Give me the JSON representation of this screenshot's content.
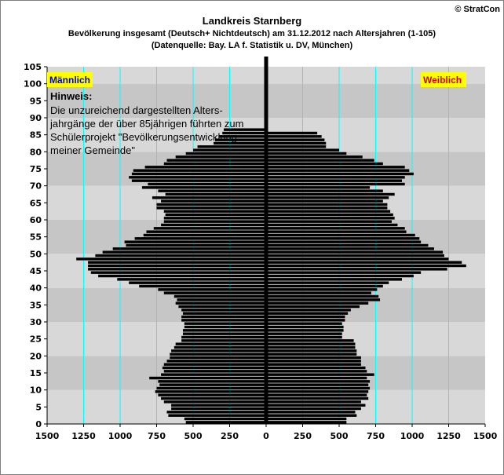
{
  "header": {
    "title": "Landkreis Starnberg",
    "subtitle": "Bevölkerung  insgesamt (Deutsch+ Nichtdeutsch) am 31.12.2012 nach Altersjahren (1-105)",
    "source": "(Datenquelle: Bay. LA f. Statistik u. DV, München)",
    "copyright": "© StratCon"
  },
  "labels": {
    "male": "Männlich",
    "female": "Weiblich"
  },
  "note": {
    "heading": "Hinweis:",
    "lines": [
      "Die unzureichend dargestellten Alters-",
      "jahrgänge der über 85jährigen führten zum",
      "Schülerprojekt \"Bevölkerungsentwicklung",
      "meiner Gemeinde\""
    ]
  },
  "colors": {
    "bars": "#000000",
    "gridlines": "#00ffff",
    "tag_background": "#ffff00",
    "male_tag_text": "#0000cc",
    "female_tag_text": "#cc0000",
    "bands": [
      "#d8d8d8",
      "#c6c6c6",
      "#d8d8d8",
      "#c6c6c6",
      "#d8d8d8",
      "#c6c6c6",
      "#d8d8d8",
      "#c6c6c6",
      "#d8d8d8",
      "#c6c6c6",
      "#d8d8d8"
    ]
  },
  "chart_data": {
    "type": "bar",
    "orientation": "horizontal",
    "description_type": "population pyramid",
    "series_names": [
      "Männlich",
      "Weiblich"
    ],
    "x_ticks": [
      "1500",
      "1250",
      "1000",
      "750",
      "500",
      "250",
      "0",
      "250",
      "500",
      "750",
      "1000",
      "1250",
      "1500"
    ],
    "xlim": [
      -1500,
      1500
    ],
    "y_ticks": [
      "0",
      "5",
      "10",
      "15",
      "20",
      "25",
      "30",
      "35",
      "40",
      "45",
      "50",
      "55",
      "60",
      "65",
      "70",
      "75",
      "80",
      "85",
      "90",
      "95",
      "100",
      "105"
    ],
    "ylim": [
      0,
      105
    ],
    "male": [
      550,
      560,
      670,
      680,
      650,
      650,
      700,
      720,
      740,
      760,
      750,
      730,
      740,
      800,
      720,
      700,
      710,
      700,
      680,
      660,
      660,
      650,
      630,
      620,
      580,
      580,
      570,
      570,
      560,
      560,
      580,
      580,
      570,
      580,
      600,
      620,
      610,
      630,
      700,
      740,
      870,
      940,
      1020,
      1150,
      1200,
      1220,
      1220,
      1220,
      1300,
      1170,
      1120,
      1050,
      960,
      970,
      900,
      840,
      820,
      770,
      720,
      700,
      700,
      690,
      700,
      750,
      750,
      720,
      780,
      690,
      740,
      850,
      810,
      920,
      940,
      920,
      910,
      830,
      700,
      680,
      620,
      550,
      500,
      470,
      360,
      350,
      320,
      300,
      290,
      0,
      0,
      0,
      0,
      0,
      0,
      0,
      0,
      0,
      0,
      0,
      0,
      0,
      0,
      0,
      0,
      0,
      0,
      0
    ],
    "female": [
      550,
      550,
      620,
      610,
      650,
      680,
      650,
      700,
      690,
      700,
      710,
      700,
      710,
      690,
      740,
      690,
      680,
      650,
      650,
      650,
      620,
      620,
      610,
      610,
      600,
      520,
      520,
      530,
      530,
      520,
      540,
      540,
      560,
      580,
      640,
      700,
      780,
      770,
      720,
      760,
      800,
      840,
      930,
      1010,
      1060,
      1240,
      1370,
      1340,
      1250,
      1220,
      1210,
      1150,
      1110,
      1060,
      1050,
      1020,
      960,
      950,
      900,
      860,
      880,
      870,
      850,
      830,
      830,
      800,
      840,
      880,
      800,
      710,
      950,
      930,
      950,
      1010,
      980,
      950,
      800,
      740,
      660,
      550,
      500,
      410,
      410,
      400,
      380,
      350,
      0,
      0,
      0,
      0,
      0,
      0,
      0,
      0,
      0,
      0,
      0,
      0,
      0,
      0,
      0,
      0,
      0,
      0,
      0,
      0
    ]
  }
}
